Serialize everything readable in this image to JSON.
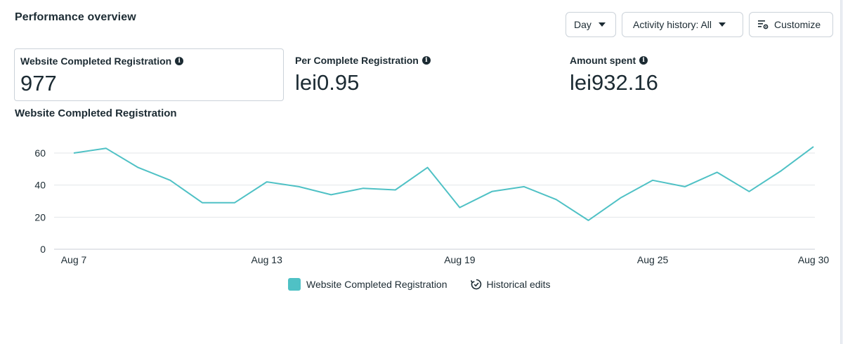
{
  "header": {
    "title": "Performance overview",
    "day_label": "Day",
    "activity_label": "Activity history: All",
    "customize_label": "Customize"
  },
  "metrics": [
    {
      "label": "Website Completed Registration",
      "value": "977",
      "selected": true
    },
    {
      "label": "Per Complete Registration",
      "value": "lei0.95",
      "selected": false
    },
    {
      "label": "Amount spent",
      "value": "lei932.16",
      "selected": false
    }
  ],
  "chart_title": "Website Completed Registration",
  "chart_data": {
    "type": "line",
    "x": [
      "Aug 7",
      "Aug 8",
      "Aug 9",
      "Aug 10",
      "Aug 11",
      "Aug 12",
      "Aug 13",
      "Aug 14",
      "Aug 15",
      "Aug 16",
      "Aug 17",
      "Aug 18",
      "Aug 19",
      "Aug 20",
      "Aug 21",
      "Aug 22",
      "Aug 23",
      "Aug 24",
      "Aug 25",
      "Aug 26",
      "Aug 27",
      "Aug 28",
      "Aug 29",
      "Aug 30"
    ],
    "x_tick_labels": [
      "Aug 7",
      "Aug 13",
      "Aug 19",
      "Aug 25",
      "Aug 30"
    ],
    "series": [
      {
        "name": "Website Completed Registration",
        "values": [
          60,
          63,
          51,
          43,
          29,
          29,
          42,
          39,
          34,
          38,
          37,
          51,
          26,
          36,
          39,
          31,
          18,
          32,
          43,
          39,
          48,
          36,
          49,
          64
        ]
      }
    ],
    "y_ticks": [
      0,
      20,
      40,
      60
    ],
    "ylim": [
      0,
      70
    ],
    "grid": true,
    "color": "#4fc1c5"
  },
  "legend": {
    "series_label": "Website Completed Registration",
    "edits_label": "Historical edits",
    "series_color": "#4fc1c5"
  }
}
